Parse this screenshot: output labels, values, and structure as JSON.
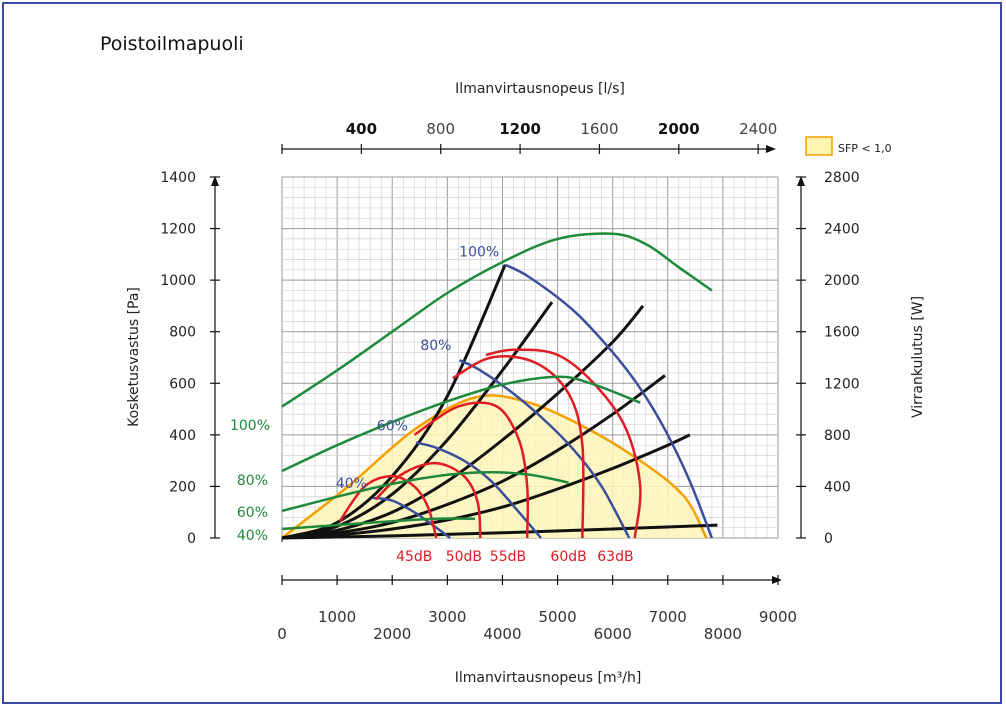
{
  "chart_data": {
    "type": "line",
    "title": "Poistoilmapuoli",
    "top_axis": {
      "label": "Ilmanvirtausnopeus [l/s]",
      "ticks": [
        0,
        400,
        800,
        1200,
        1600,
        2000,
        2400
      ],
      "tick_labels": [
        "400",
        "800",
        "1200",
        "1600",
        "2000",
        "2400"
      ],
      "tick_values": [
        400,
        800,
        1200,
        1600,
        2000,
        2400
      ],
      "bold_labels": [
        "400",
        "1200",
        "2000"
      ]
    },
    "bottom_axis": {
      "label": "Ilmanvirtausnopeus [m³/h]",
      "xlim": [
        0,
        9000
      ],
      "ticks": [
        0,
        1000,
        2000,
        3000,
        4000,
        5000,
        6000,
        7000,
        8000,
        9000
      ],
      "tick_labels_upper": [
        "1000",
        "3000",
        "5000",
        "7000",
        "9000"
      ],
      "tick_labels_lower": [
        "0",
        "2000",
        "4000",
        "6000",
        "8000"
      ]
    },
    "left_axis": {
      "label": "Kosketusvastus [Pa]",
      "ylim": [
        0,
        1400
      ],
      "ticks": [
        "0",
        "200",
        "400",
        "600",
        "800",
        "1000",
        "1200",
        "1400"
      ]
    },
    "right_axis": {
      "label": "Virrankulutus [W]",
      "ylim": [
        0,
        2800
      ],
      "ticks": [
        "0",
        "400",
        "800",
        "1200",
        "1600",
        "2000",
        "2400",
        "2800"
      ]
    },
    "legend": {
      "label": "SFP < 1,0",
      "color": "#fff4b0",
      "border": "#f5a000",
      "position": "top-right"
    },
    "sfp_region": {
      "color": "#fff6b8",
      "border": "#f5a000",
      "points": [
        [
          0,
          0
        ],
        [
          1200,
          200
        ],
        [
          2400,
          420
        ],
        [
          3500,
          545
        ],
        [
          4400,
          530
        ],
        [
          5400,
          440
        ],
        [
          6500,
          300
        ],
        [
          7300,
          160
        ],
        [
          7700,
          0
        ]
      ]
    },
    "fan_curves": {
      "color": "#3a4f9c",
      "series": [
        {
          "name": "100%",
          "points": [
            [
              4050,
              1060
            ],
            [
              4500,
              1010
            ],
            [
              5300,
              880
            ],
            [
              6000,
              720
            ],
            [
              6500,
              580
            ],
            [
              6950,
              420
            ],
            [
              7400,
              220
            ],
            [
              7800,
              0
            ]
          ]
        },
        {
          "name": "80%",
          "points": [
            [
              3220,
              690
            ],
            [
              3600,
              650
            ],
            [
              4200,
              560
            ],
            [
              4800,
              450
            ],
            [
              5300,
              340
            ],
            [
              5800,
              200
            ],
            [
              6300,
              0
            ]
          ]
        },
        {
          "name": "60%",
          "points": [
            [
              2430,
              370
            ],
            [
              2800,
              350
            ],
            [
              3300,
              300
            ],
            [
              3800,
              220
            ],
            [
              4300,
              100
            ],
            [
              4700,
              0
            ]
          ]
        },
        {
          "name": "40%",
          "points": [
            [
              1650,
              155
            ],
            [
              2000,
              145
            ],
            [
              2400,
              100
            ],
            [
              2800,
              40
            ],
            [
              3050,
              0
            ]
          ]
        }
      ]
    },
    "power_curves": {
      "color": "#1f8a3c",
      "series": [
        {
          "name": "100%",
          "points": [
            [
              0,
              1020
            ],
            [
              1000,
              1300
            ],
            [
              2000,
              1600
            ],
            [
              3000,
              1900
            ],
            [
              4000,
              2140
            ],
            [
              5000,
              2320
            ],
            [
              6000,
              2360
            ],
            [
              6600,
              2280
            ],
            [
              7200,
              2100
            ],
            [
              7800,
              1920
            ]
          ]
        },
        {
          "name": "80%",
          "points": [
            [
              0,
              520
            ],
            [
              1000,
              720
            ],
            [
              2000,
              900
            ],
            [
              3000,
              1060
            ],
            [
              4000,
              1190
            ],
            [
              5000,
              1250
            ],
            [
              5600,
              1200
            ],
            [
              6500,
              1050
            ]
          ]
        },
        {
          "name": "60%",
          "points": [
            [
              0,
              210
            ],
            [
              1000,
              320
            ],
            [
              2000,
              420
            ],
            [
              3000,
              490
            ],
            [
              3800,
              510
            ],
            [
              4500,
              490
            ],
            [
              5200,
              430
            ]
          ]
        },
        {
          "name": "40%",
          "points": [
            [
              0,
              70
            ],
            [
              1000,
              100
            ],
            [
              2000,
              130
            ],
            [
              2800,
              150
            ],
            [
              3500,
              150
            ]
          ]
        }
      ]
    },
    "system_curves": {
      "color": "#111111",
      "series": [
        {
          "points": [
            [
              0,
              0
            ],
            [
              1000,
              60
            ],
            [
              2000,
              240
            ],
            [
              3000,
              550
            ],
            [
              4050,
              1060
            ]
          ]
        },
        {
          "points": [
            [
              0,
              0
            ],
            [
              1000,
              45
            ],
            [
              2000,
              170
            ],
            [
              3000,
              380
            ],
            [
              4000,
              650
            ],
            [
              4900,
              915
            ]
          ]
        },
        {
          "points": [
            [
              0,
              0
            ],
            [
              1000,
              30
            ],
            [
              2000,
              100
            ],
            [
              3000,
              220
            ],
            [
              4000,
              380
            ],
            [
              5000,
              560
            ],
            [
              6000,
              760
            ],
            [
              6550,
              900
            ]
          ]
        },
        {
          "points": [
            [
              0,
              0
            ],
            [
              1000,
              20
            ],
            [
              2000,
              60
            ],
            [
              3000,
              130
            ],
            [
              4000,
              220
            ],
            [
              5000,
              340
            ],
            [
              6000,
              480
            ],
            [
              6950,
              630
            ]
          ]
        },
        {
          "points": [
            [
              0,
              0
            ],
            [
              1000,
              12
            ],
            [
              2000,
              35
            ],
            [
              3000,
              70
            ],
            [
              4000,
              120
            ],
            [
              5000,
              190
            ],
            [
              6000,
              270
            ],
            [
              7000,
              360
            ],
            [
              7400,
              400
            ]
          ]
        },
        {
          "points": [
            [
              0,
              0
            ],
            [
              2000,
              8
            ],
            [
              4000,
              20
            ],
            [
              6000,
              35
            ],
            [
              7900,
              50
            ]
          ]
        }
      ]
    },
    "sound_curves": {
      "color": "#e01b24",
      "series": [
        {
          "name": "45dB",
          "points": [
            [
              1050,
              65
            ],
            [
              1500,
              200
            ],
            [
              2000,
              240
            ],
            [
              2400,
              200
            ],
            [
              2650,
              120
            ],
            [
              2800,
              0
            ]
          ]
        },
        {
          "name": "50dB",
          "points": [
            [
              1700,
              150
            ],
            [
              2200,
              250
            ],
            [
              2800,
              290
            ],
            [
              3300,
              240
            ],
            [
              3550,
              140
            ],
            [
              3600,
              0
            ]
          ]
        },
        {
          "name": "55dB",
          "points": [
            [
              2400,
              400
            ],
            [
              3200,
              510
            ],
            [
              3900,
              510
            ],
            [
              4300,
              380
            ],
            [
              4450,
              200
            ],
            [
              4450,
              0
            ]
          ]
        },
        {
          "name": "60dB",
          "points": [
            [
              3100,
              620
            ],
            [
              3800,
              700
            ],
            [
              4600,
              680
            ],
            [
              5200,
              560
            ],
            [
              5450,
              360
            ],
            [
              5450,
              0
            ]
          ]
        },
        {
          "name": "63dB",
          "points": [
            [
              3700,
              710
            ],
            [
              4200,
              730
            ],
            [
              5000,
              710
            ],
            [
              5700,
              590
            ],
            [
              6250,
              420
            ],
            [
              6500,
              200
            ],
            [
              6400,
              0
            ]
          ]
        }
      ],
      "labels": [
        "45dB",
        "50dB",
        "55dB",
        "60dB",
        "63dB"
      ]
    }
  }
}
